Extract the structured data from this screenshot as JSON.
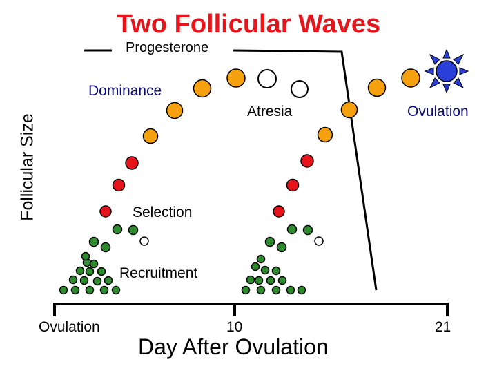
{
  "title": "Two Follicular Waves",
  "progesterone_label": "Progesterone",
  "y_axis_label": "Follicular Size",
  "x_axis_label": "Day After Ovulation",
  "x_ticks": [
    "Ovulation",
    "10",
    "21"
  ],
  "stage_labels": {
    "dominance": "Dominance",
    "atresia": "Atresia",
    "ovulation": "Ovulation",
    "selection": "Selection",
    "recruitment": "Recruitment"
  },
  "colors": {
    "title": "#e8141c",
    "recruited_follicle": "#2e8b2e",
    "selected_follicle": "#e8141c",
    "dominant_follicle": "#f5a00f",
    "atretic_follicle": "#ffffff",
    "ovulatory_follicle": "#2a3fd8",
    "stage_text_accent": "#0d0d7a"
  }
}
